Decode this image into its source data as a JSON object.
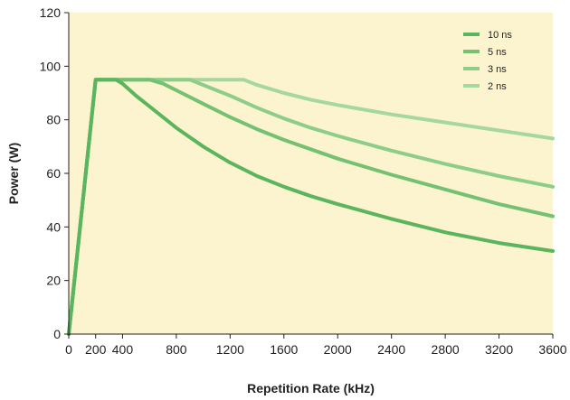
{
  "chart_data": {
    "type": "line",
    "xlabel": "Repetition Rate (kHz)",
    "ylabel": "Power (W)",
    "xlim": [
      0,
      3600
    ],
    "ylim": [
      0,
      120
    ],
    "x_ticks": [
      0,
      200,
      400,
      800,
      1200,
      1600,
      2000,
      2400,
      2800,
      3200,
      3600
    ],
    "y_ticks": [
      0,
      20,
      40,
      60,
      80,
      100,
      120
    ],
    "grid": false,
    "background": "#fcf4cf",
    "legend_position": "top-right",
    "series": [
      {
        "name": "10 ns",
        "color": "#5bb55e",
        "points": [
          [
            0,
            0
          ],
          [
            200,
            95
          ],
          [
            350,
            95
          ],
          [
            400,
            93.5
          ],
          [
            500,
            89
          ],
          [
            600,
            85
          ],
          [
            800,
            77
          ],
          [
            1000,
            70
          ],
          [
            1200,
            64
          ],
          [
            1400,
            59
          ],
          [
            1600,
            55
          ],
          [
            1800,
            51.5
          ],
          [
            2000,
            48.5
          ],
          [
            2400,
            43
          ],
          [
            2800,
            38
          ],
          [
            3200,
            34
          ],
          [
            3600,
            31
          ]
        ]
      },
      {
        "name": "5 ns",
        "color": "#74c173",
        "points": [
          [
            0,
            0
          ],
          [
            200,
            95
          ],
          [
            600,
            95
          ],
          [
            700,
            93.5
          ],
          [
            800,
            91
          ],
          [
            1000,
            86
          ],
          [
            1200,
            81
          ],
          [
            1400,
            76.5
          ],
          [
            1600,
            72.5
          ],
          [
            1800,
            69
          ],
          [
            2000,
            65.5
          ],
          [
            2400,
            59.5
          ],
          [
            2800,
            54
          ],
          [
            3200,
            48.5
          ],
          [
            3600,
            44
          ]
        ]
      },
      {
        "name": "3 ns",
        "color": "#8ecd89",
        "points": [
          [
            0,
            0
          ],
          [
            200,
            95
          ],
          [
            900,
            95
          ],
          [
            1000,
            93
          ],
          [
            1200,
            89
          ],
          [
            1400,
            84.5
          ],
          [
            1600,
            80.5
          ],
          [
            1800,
            77
          ],
          [
            2000,
            74
          ],
          [
            2400,
            68.5
          ],
          [
            2800,
            63.5
          ],
          [
            3200,
            59
          ],
          [
            3600,
            55
          ]
        ]
      },
      {
        "name": "2 ns",
        "color": "#a6d89e",
        "points": [
          [
            0,
            0
          ],
          [
            200,
            95
          ],
          [
            1300,
            95
          ],
          [
            1400,
            93
          ],
          [
            1600,
            90
          ],
          [
            1800,
            87.5
          ],
          [
            2000,
            85.5
          ],
          [
            2400,
            82
          ],
          [
            2800,
            79
          ],
          [
            3200,
            76
          ],
          [
            3600,
            73
          ]
        ]
      }
    ]
  }
}
